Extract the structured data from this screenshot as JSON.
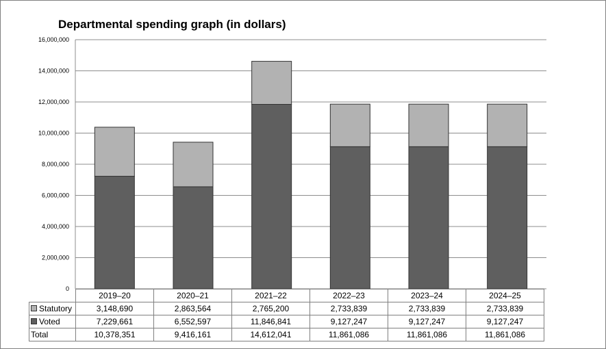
{
  "chart_data": {
    "type": "bar",
    "stacked": true,
    "title": "Departmental spending graph (in dollars)",
    "categories": [
      "2019–20",
      "2020–21",
      "2021–22",
      "2022–23",
      "2023–24",
      "2024–25"
    ],
    "series": [
      {
        "name": "Statutory",
        "color": "#b2b2b2",
        "values": [
          3148690,
          2863564,
          2765200,
          2733839,
          2733839,
          2733839
        ],
        "labels": [
          "3,148,690",
          "2,863,564",
          "2,765,200",
          "2,733,839",
          "2,733,839",
          "2,733,839"
        ]
      },
      {
        "name": "Voted",
        "color": "#5f5f5f",
        "values": [
          7229661,
          6552597,
          11846841,
          9127247,
          9127247,
          9127247
        ],
        "labels": [
          "7,229,661",
          "6,552,597",
          "11,846,841",
          "9,127,247",
          "9,127,247",
          "9,127,247"
        ]
      }
    ],
    "totals": {
      "name": "Total",
      "labels": [
        "10,378,351",
        "9,416,161",
        "14,612,041",
        "11,861,086",
        "11,861,086",
        "11,861,086"
      ]
    },
    "ylim": [
      0,
      16000000
    ],
    "yticks": [
      0,
      2000000,
      4000000,
      6000000,
      8000000,
      10000000,
      12000000,
      14000000,
      16000000
    ],
    "ytick_labels": [
      "0",
      "2,000,000",
      "4,000,000",
      "6,000,000",
      "8,000,000",
      "10,000,000",
      "12,000,000",
      "14,000,000",
      "16,000,000"
    ],
    "grid": true,
    "legend": "data-table"
  }
}
